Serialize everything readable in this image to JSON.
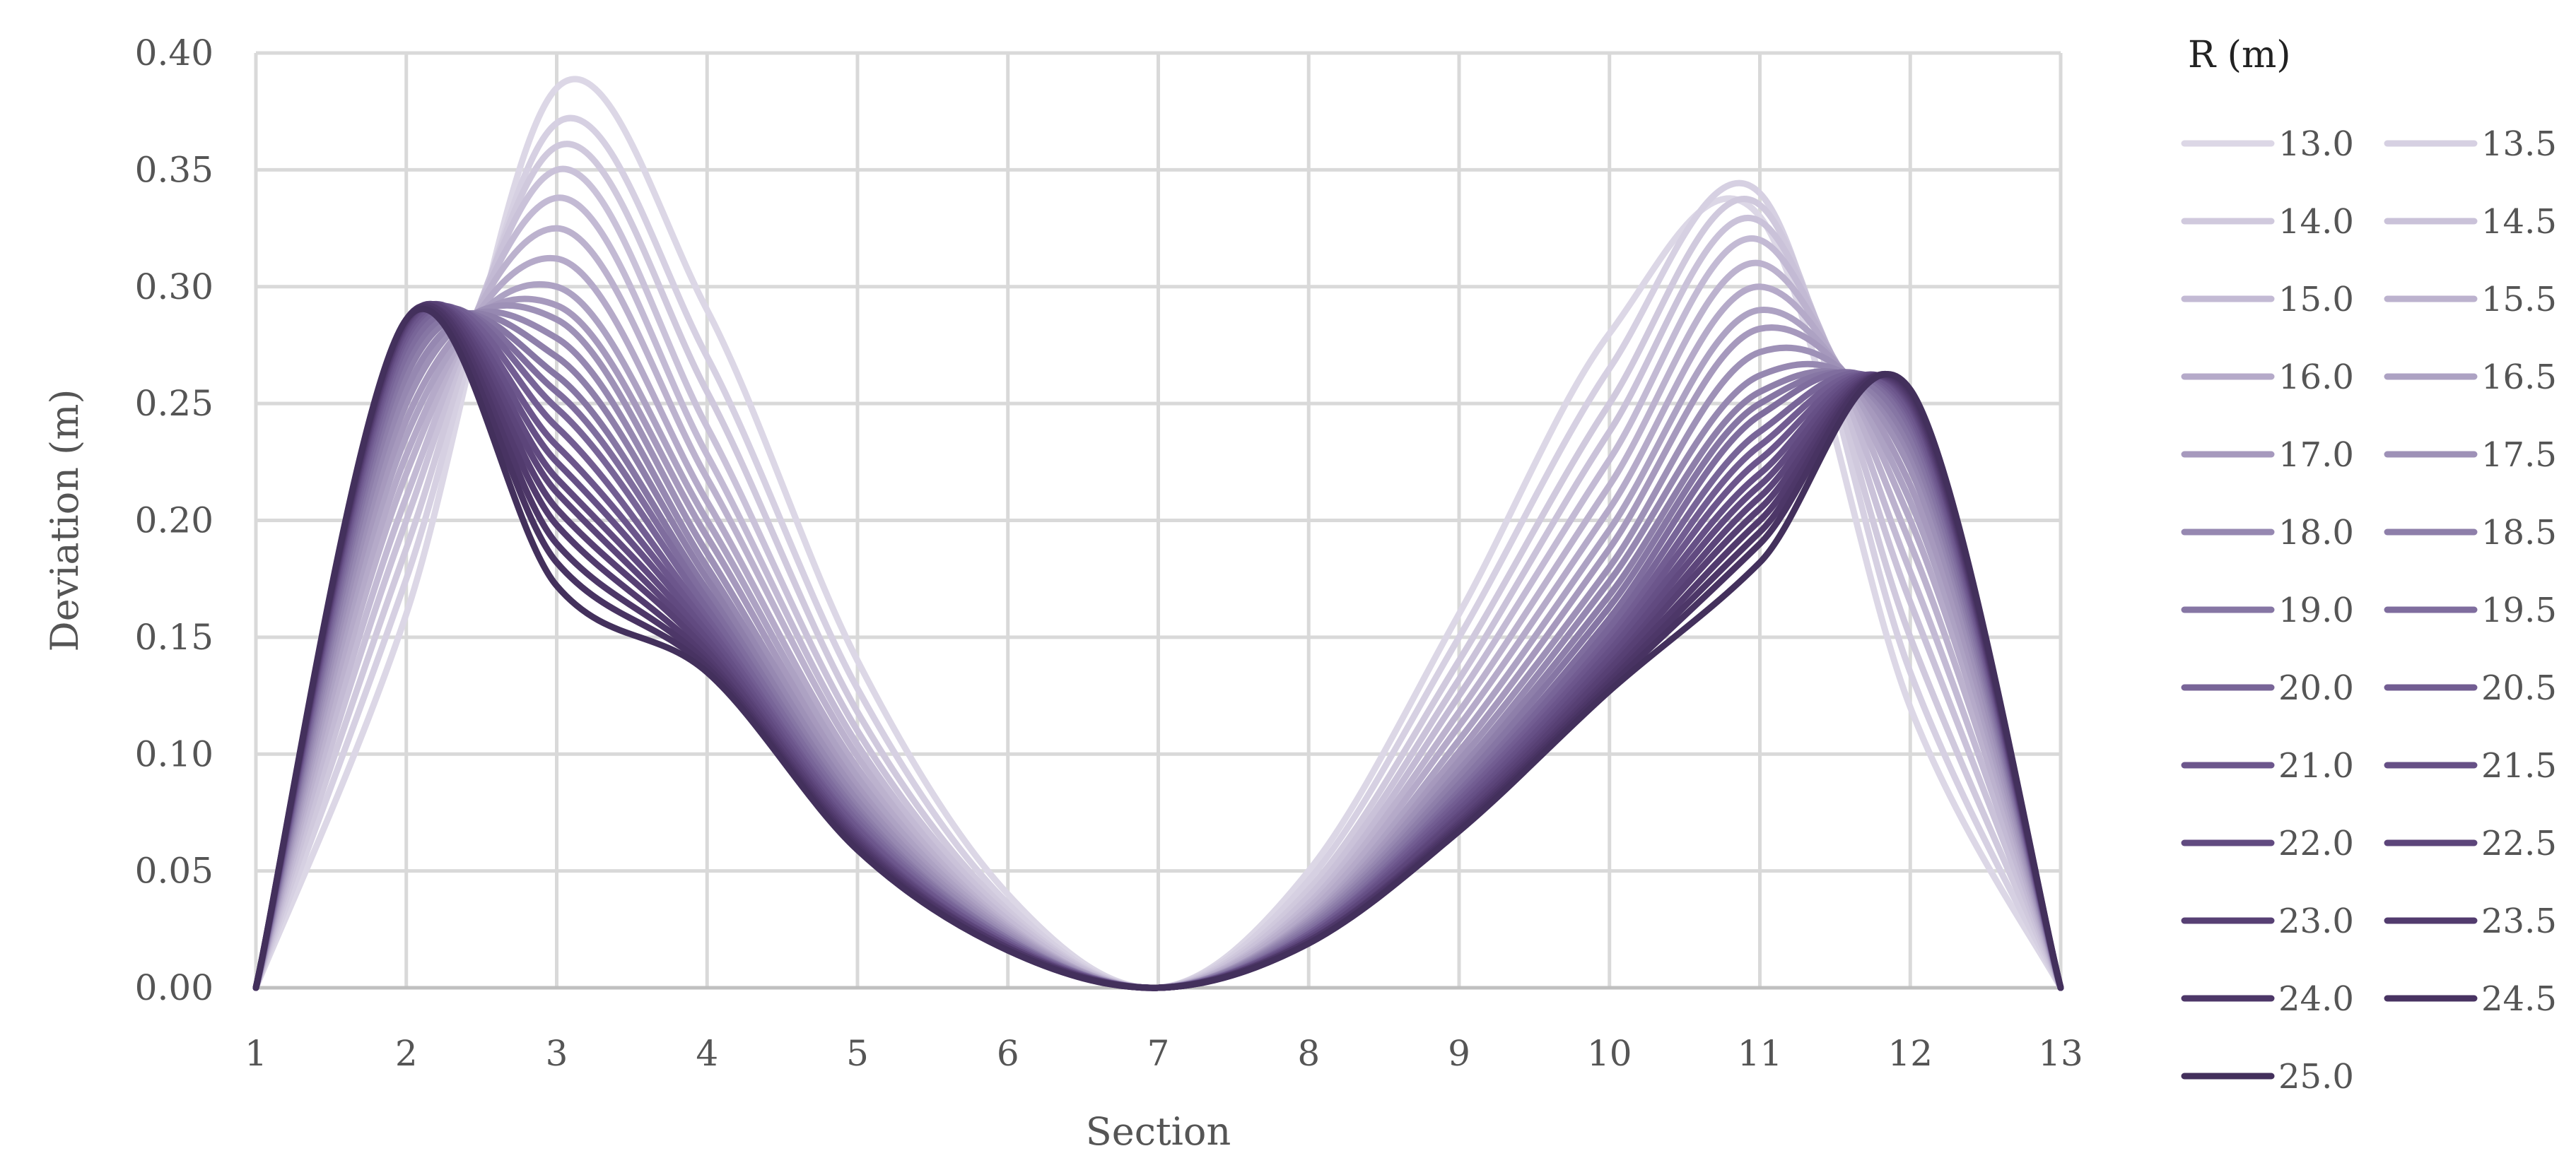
{
  "chart_data": {
    "type": "line",
    "xlabel": "Section",
    "ylabel": "Deviation (m)",
    "x": [
      1,
      2,
      3,
      4,
      5,
      6,
      7,
      8,
      9,
      10,
      11,
      12,
      13
    ],
    "xlim": [
      1,
      13
    ],
    "ylim": [
      0,
      0.4
    ],
    "x_ticks": [
      "1",
      "2",
      "3",
      "4",
      "5",
      "6",
      "7",
      "8",
      "9",
      "10",
      "11",
      "12",
      "13"
    ],
    "y_ticks": [
      "0.00",
      "0.05",
      "0.10",
      "0.15",
      "0.20",
      "0.25",
      "0.30",
      "0.35",
      "0.40"
    ],
    "grid": true,
    "legend_title": "R (m)",
    "legend_position": "right",
    "series": [
      {
        "name": "13.0",
        "color": "#dcd7e6",
        "values": [
          0,
          0.16,
          0.385,
          0.29,
          0.14,
          0.04,
          0,
          0.05,
          0.16,
          0.28,
          0.33,
          0.12,
          0
        ]
      },
      {
        "name": "13.5",
        "color": "#d6d0e2",
        "values": [
          0,
          0.175,
          0.37,
          0.27,
          0.128,
          0.036,
          0,
          0.046,
          0.15,
          0.265,
          0.34,
          0.135,
          0
        ]
      },
      {
        "name": "14.0",
        "color": "#d0c9dd",
        "values": [
          0,
          0.188,
          0.36,
          0.255,
          0.118,
          0.033,
          0,
          0.042,
          0.14,
          0.25,
          0.335,
          0.15,
          0
        ]
      },
      {
        "name": "14.5",
        "color": "#cac2d9",
        "values": [
          0,
          0.2,
          0.35,
          0.24,
          0.11,
          0.031,
          0,
          0.039,
          0.132,
          0.238,
          0.328,
          0.165,
          0
        ]
      },
      {
        "name": "15.0",
        "color": "#c3bad4",
        "values": [
          0,
          0.21,
          0.338,
          0.228,
          0.104,
          0.029,
          0,
          0.036,
          0.125,
          0.226,
          0.32,
          0.178,
          0
        ]
      },
      {
        "name": "15.5",
        "color": "#bcb2ce",
        "values": [
          0,
          0.22,
          0.325,
          0.218,
          0.099,
          0.027,
          0,
          0.034,
          0.118,
          0.215,
          0.31,
          0.19,
          0
        ]
      },
      {
        "name": "16.0",
        "color": "#b5aac9",
        "values": [
          0,
          0.228,
          0.312,
          0.208,
          0.094,
          0.026,
          0,
          0.032,
          0.112,
          0.205,
          0.3,
          0.2,
          0
        ]
      },
      {
        "name": "16.5",
        "color": "#ada2c3",
        "values": [
          0,
          0.236,
          0.3,
          0.2,
          0.09,
          0.025,
          0,
          0.03,
          0.106,
          0.196,
          0.29,
          0.208,
          0
        ]
      },
      {
        "name": "17.0",
        "color": "#a699bd",
        "values": [
          0,
          0.243,
          0.292,
          0.193,
          0.086,
          0.024,
          0,
          0.029,
          0.101,
          0.188,
          0.282,
          0.215,
          0
        ]
      },
      {
        "name": "17.5",
        "color": "#9e91b7",
        "values": [
          0,
          0.25,
          0.286,
          0.186,
          0.083,
          0.023,
          0,
          0.028,
          0.097,
          0.18,
          0.272,
          0.222,
          0
        ]
      },
      {
        "name": "18.0",
        "color": "#9688b1",
        "values": [
          0,
          0.256,
          0.278,
          0.18,
          0.08,
          0.022,
          0,
          0.027,
          0.093,
          0.174,
          0.262,
          0.228,
          0
        ]
      },
      {
        "name": "18.5",
        "color": "#8e7faa",
        "values": [
          0,
          0.262,
          0.27,
          0.175,
          0.077,
          0.021,
          0,
          0.026,
          0.09,
          0.168,
          0.255,
          0.232,
          0
        ]
      },
      {
        "name": "19.0",
        "color": "#8676a4",
        "values": [
          0,
          0.267,
          0.262,
          0.17,
          0.075,
          0.021,
          0,
          0.025,
          0.087,
          0.163,
          0.25,
          0.236,
          0
        ]
      },
      {
        "name": "19.5",
        "color": "#7f6d9e",
        "values": [
          0,
          0.271,
          0.255,
          0.166,
          0.073,
          0.02,
          0,
          0.024,
          0.084,
          0.158,
          0.245,
          0.24,
          0
        ]
      },
      {
        "name": "20.0",
        "color": "#786598",
        "values": [
          0,
          0.275,
          0.248,
          0.162,
          0.071,
          0.02,
          0,
          0.023,
          0.082,
          0.154,
          0.238,
          0.243,
          0
        ]
      },
      {
        "name": "20.5",
        "color": "#725d92",
        "values": [
          0,
          0.278,
          0.24,
          0.158,
          0.069,
          0.019,
          0,
          0.023,
          0.08,
          0.15,
          0.232,
          0.245,
          0
        ]
      },
      {
        "name": "21.0",
        "color": "#6c568c",
        "values": [
          0,
          0.28,
          0.232,
          0.155,
          0.068,
          0.019,
          0,
          0.022,
          0.078,
          0.147,
          0.226,
          0.247,
          0
        ]
      },
      {
        "name": "21.5",
        "color": "#665086",
        "values": [
          0,
          0.282,
          0.225,
          0.152,
          0.066,
          0.018,
          0,
          0.022,
          0.076,
          0.144,
          0.22,
          0.249,
          0
        ]
      },
      {
        "name": "22.0",
        "color": "#614a80",
        "values": [
          0,
          0.283,
          0.218,
          0.149,
          0.065,
          0.018,
          0,
          0.021,
          0.074,
          0.141,
          0.215,
          0.25,
          0
        ]
      },
      {
        "name": "22.5",
        "color": "#5c457a",
        "values": [
          0,
          0.284,
          0.212,
          0.146,
          0.064,
          0.018,
          0,
          0.021,
          0.073,
          0.138,
          0.21,
          0.251,
          0
        ]
      },
      {
        "name": "23.0",
        "color": "#574074",
        "values": [
          0,
          0.285,
          0.205,
          0.144,
          0.063,
          0.017,
          0,
          0.02,
          0.071,
          0.136,
          0.205,
          0.252,
          0
        ]
      },
      {
        "name": "23.5",
        "color": "#523b6e",
        "values": [
          0,
          0.285,
          0.198,
          0.141,
          0.062,
          0.017,
          0,
          0.02,
          0.07,
          0.133,
          0.2,
          0.253,
          0
        ]
      },
      {
        "name": "24.0",
        "color": "#4d3768",
        "values": [
          0,
          0.286,
          0.19,
          0.139,
          0.061,
          0.017,
          0,
          0.02,
          0.069,
          0.131,
          0.195,
          0.254,
          0
        ]
      },
      {
        "name": "24.5",
        "color": "#483362",
        "values": [
          0,
          0.286,
          0.182,
          0.137,
          0.06,
          0.016,
          0,
          0.019,
          0.068,
          0.129,
          0.19,
          0.255,
          0
        ]
      },
      {
        "name": "25.0",
        "color": "#43305c",
        "values": [
          0,
          0.286,
          0.172,
          0.135,
          0.059,
          0.016,
          0,
          0.019,
          0.067,
          0.127,
          0.182,
          0.256,
          0
        ]
      }
    ]
  }
}
